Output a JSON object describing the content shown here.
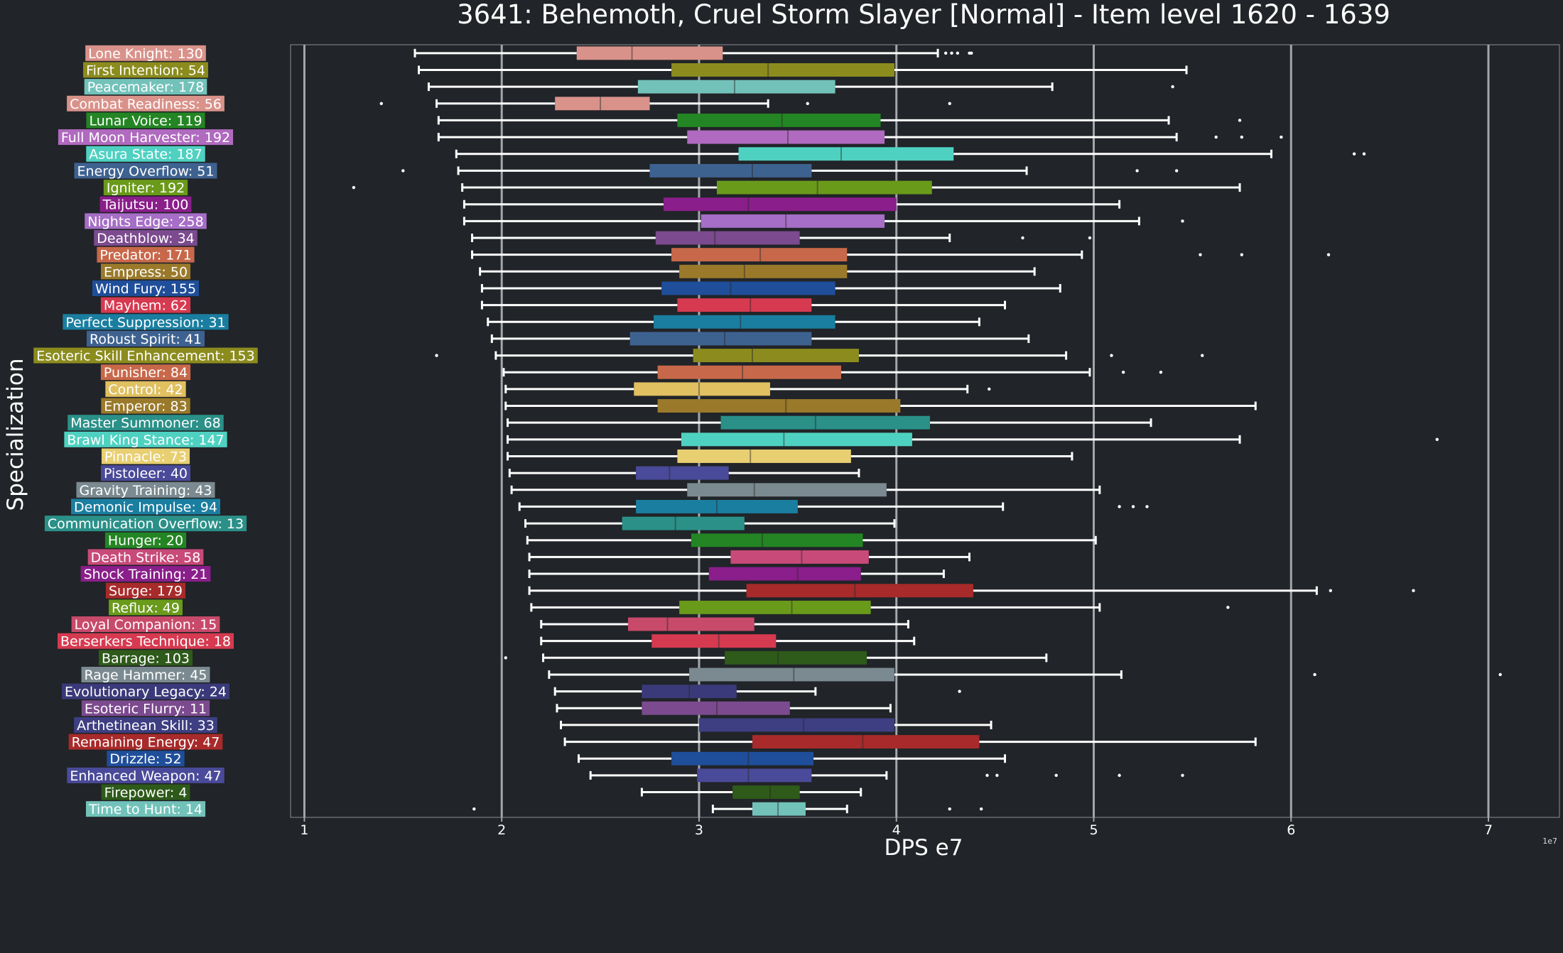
{
  "chart_data": {
    "type": "boxplot",
    "title": "3641: Behemoth, Cruel Storm Slayer [Normal] - Item level 1620 - 1639",
    "xlabel": "DPS e7",
    "ylabel": "Specialization",
    "scale_note": "1e7",
    "xlim": [
      0.93,
      7.36
    ],
    "xticks": [
      1,
      2,
      3,
      4,
      5,
      6,
      7
    ],
    "grid": "vertical",
    "background": "#212428",
    "series": [
      {
        "name": "Lone Knight",
        "count": 130,
        "color": "#D9928A",
        "min": 1.56,
        "q1": 2.38,
        "median": 2.66,
        "q3": 3.12,
        "max": 4.21,
        "outliers": [
          4.25,
          4.28,
          4.31,
          4.37,
          4.38
        ]
      },
      {
        "name": "First Intention",
        "count": 54,
        "color": "#8C8C1E",
        "min": 1.58,
        "q1": 2.86,
        "median": 3.35,
        "q3": 3.99,
        "max": 5.47,
        "outliers": []
      },
      {
        "name": "Peacemaker",
        "count": 178,
        "color": "#72C2BA",
        "min": 1.63,
        "q1": 2.69,
        "median": 3.18,
        "q3": 3.69,
        "max": 4.79,
        "outliers": [
          5.4
        ]
      },
      {
        "name": "Combat Readiness",
        "count": 56,
        "color": "#D9928A",
        "min": 1.67,
        "q1": 2.27,
        "median": 2.5,
        "q3": 2.75,
        "max": 3.35,
        "outliers": [
          1.39,
          3.55,
          4.27
        ]
      },
      {
        "name": "Lunar Voice",
        "count": 119,
        "color": "#238523",
        "min": 1.68,
        "q1": 2.89,
        "median": 3.42,
        "q3": 3.92,
        "max": 5.38,
        "outliers": [
          5.74
        ]
      },
      {
        "name": "Full Moon Harvester",
        "count": 192,
        "color": "#B06ABF",
        "min": 1.68,
        "q1": 2.94,
        "median": 3.45,
        "q3": 3.94,
        "max": 5.42,
        "outliers": [
          5.62,
          5.75,
          5.95
        ]
      },
      {
        "name": "Asura State",
        "count": 187,
        "color": "#4FD1C1",
        "min": 1.77,
        "q1": 3.2,
        "median": 3.72,
        "q3": 4.29,
        "max": 5.9,
        "outliers": [
          6.32,
          6.37
        ]
      },
      {
        "name": "Energy Overflow",
        "count": 51,
        "color": "#3E6290",
        "min": 1.78,
        "q1": 2.75,
        "median": 3.27,
        "q3": 3.57,
        "max": 4.66,
        "outliers": [
          1.5,
          5.22,
          5.42
        ]
      },
      {
        "name": "Igniter",
        "count": 192,
        "color": "#6A9A1A",
        "min": 1.8,
        "q1": 3.09,
        "median": 3.6,
        "q3": 4.18,
        "max": 5.74,
        "outliers": [
          1.25
        ]
      },
      {
        "name": "Taijutsu",
        "count": 100,
        "color": "#8A1E8A",
        "min": 1.81,
        "q1": 2.82,
        "median": 3.25,
        "q3": 4.0,
        "max": 5.13,
        "outliers": []
      },
      {
        "name": "Nights Edge",
        "count": 258,
        "color": "#A66EC6",
        "min": 1.81,
        "q1": 3.01,
        "median": 3.44,
        "q3": 3.94,
        "max": 5.23,
        "outliers": [
          5.45
        ]
      },
      {
        "name": "Deathblow",
        "count": 34,
        "color": "#7C4A8E",
        "min": 1.85,
        "q1": 2.78,
        "median": 3.08,
        "q3": 3.51,
        "max": 4.27,
        "outliers": [
          4.64,
          4.98
        ]
      },
      {
        "name": "Predator",
        "count": 171,
        "color": "#C8684A",
        "min": 1.85,
        "q1": 2.86,
        "median": 3.31,
        "q3": 3.75,
        "max": 4.94,
        "outliers": [
          5.54,
          5.75,
          6.19
        ]
      },
      {
        "name": "Empress",
        "count": 50,
        "color": "#9A7A2A",
        "min": 1.89,
        "q1": 2.9,
        "median": 3.23,
        "q3": 3.75,
        "max": 4.7,
        "outliers": []
      },
      {
        "name": "Wind Fury",
        "count": 155,
        "color": "#1F4E9A",
        "min": 1.9,
        "q1": 2.81,
        "median": 3.16,
        "q3": 3.69,
        "max": 4.83,
        "outliers": []
      },
      {
        "name": "Mayhem",
        "count": 62,
        "color": "#D63A50",
        "min": 1.9,
        "q1": 2.89,
        "median": 3.26,
        "q3": 3.57,
        "max": 4.55,
        "outliers": []
      },
      {
        "name": "Perfect Suppression",
        "count": 31,
        "color": "#1A7EA0",
        "min": 1.93,
        "q1": 2.77,
        "median": 3.21,
        "q3": 3.69,
        "max": 4.42,
        "outliers": []
      },
      {
        "name": "Robust Spirit",
        "count": 41,
        "color": "#3E6290",
        "min": 1.95,
        "q1": 2.65,
        "median": 3.13,
        "q3": 3.57,
        "max": 4.67,
        "outliers": []
      },
      {
        "name": "Esoteric Skill Enhancement",
        "count": 153,
        "color": "#8C8C1E",
        "min": 1.97,
        "q1": 2.97,
        "median": 3.27,
        "q3": 3.81,
        "max": 4.86,
        "outliers": [
          1.67,
          5.09,
          5.55
        ]
      },
      {
        "name": "Punisher",
        "count": 84,
        "color": "#C8684A",
        "min": 2.01,
        "q1": 2.79,
        "median": 3.22,
        "q3": 3.72,
        "max": 4.98,
        "outliers": [
          5.15,
          5.34
        ]
      },
      {
        "name": "Control",
        "count": 42,
        "color": "#E0C060",
        "min": 2.02,
        "q1": 2.67,
        "median": 3.0,
        "q3": 3.36,
        "max": 4.36,
        "outliers": [
          4.47
        ]
      },
      {
        "name": "Emperor",
        "count": 83,
        "color": "#9A7A2A",
        "min": 2.02,
        "q1": 2.79,
        "median": 3.44,
        "q3": 4.02,
        "max": 5.82,
        "outliers": []
      },
      {
        "name": "Master Summoner",
        "count": 68,
        "color": "#2A9088",
        "min": 2.03,
        "q1": 3.11,
        "median": 3.59,
        "q3": 4.17,
        "max": 5.29,
        "outliers": []
      },
      {
        "name": "Brawl King Stance",
        "count": 147,
        "color": "#4FD1C1",
        "min": 2.03,
        "q1": 2.91,
        "median": 3.43,
        "q3": 4.08,
        "max": 5.74,
        "outliers": [
          6.74
        ]
      },
      {
        "name": "Pinnacle",
        "count": 73,
        "color": "#E8CF72",
        "min": 2.03,
        "q1": 2.89,
        "median": 3.26,
        "q3": 3.77,
        "max": 4.89,
        "outliers": []
      },
      {
        "name": "Pistoleer",
        "count": 40,
        "color": "#4A4A9A",
        "min": 2.04,
        "q1": 2.68,
        "median": 2.85,
        "q3": 3.15,
        "max": 3.81,
        "outliers": []
      },
      {
        "name": "Gravity Training",
        "count": 43,
        "color": "#7A8A90",
        "min": 2.05,
        "q1": 2.94,
        "median": 3.28,
        "q3": 3.95,
        "max": 5.03,
        "outliers": []
      },
      {
        "name": "Demonic Impulse",
        "count": 94,
        "color": "#1A7EA0",
        "min": 2.09,
        "q1": 2.68,
        "median": 3.09,
        "q3": 3.5,
        "max": 4.54,
        "outliers": [
          5.13,
          5.2,
          5.27
        ]
      },
      {
        "name": "Communication Overflow",
        "count": 13,
        "color": "#2A9088",
        "min": 2.12,
        "q1": 2.61,
        "median": 2.88,
        "q3": 3.23,
        "max": 3.99,
        "outliers": []
      },
      {
        "name": "Hunger",
        "count": 20,
        "color": "#238523",
        "min": 2.13,
        "q1": 2.96,
        "median": 3.32,
        "q3": 3.83,
        "max": 5.01,
        "outliers": []
      },
      {
        "name": "Death Strike",
        "count": 58,
        "color": "#C84A78",
        "min": 2.14,
        "q1": 3.16,
        "median": 3.52,
        "q3": 3.86,
        "max": 4.37,
        "outliers": []
      },
      {
        "name": "Shock Training",
        "count": 21,
        "color": "#8A1E8A",
        "min": 2.14,
        "q1": 3.05,
        "median": 3.5,
        "q3": 3.82,
        "max": 4.24,
        "outliers": []
      },
      {
        "name": "Surge",
        "count": 179,
        "color": "#A82A2A",
        "min": 2.14,
        "q1": 3.24,
        "median": 3.79,
        "q3": 4.39,
        "max": 6.13,
        "outliers": [
          6.2,
          6.62
        ]
      },
      {
        "name": "Reflux",
        "count": 49,
        "color": "#6A9A1A",
        "min": 2.15,
        "q1": 2.9,
        "median": 3.47,
        "q3": 3.87,
        "max": 5.03,
        "outliers": [
          5.68
        ]
      },
      {
        "name": "Loyal Companion",
        "count": 15,
        "color": "#C84A6A",
        "min": 2.2,
        "q1": 2.64,
        "median": 2.84,
        "q3": 3.28,
        "max": 4.06,
        "outliers": []
      },
      {
        "name": "Berserkers Technique",
        "count": 18,
        "color": "#D63A50",
        "min": 2.2,
        "q1": 2.76,
        "median": 3.1,
        "q3": 3.39,
        "max": 4.09,
        "outliers": []
      },
      {
        "name": "Barrage",
        "count": 103,
        "color": "#2E5A1A",
        "min": 2.21,
        "q1": 3.13,
        "median": 3.4,
        "q3": 3.85,
        "max": 4.76,
        "outliers": [
          2.02
        ]
      },
      {
        "name": "Rage Hammer",
        "count": 45,
        "color": "#7A8A90",
        "min": 2.24,
        "q1": 2.95,
        "median": 3.48,
        "q3": 3.99,
        "max": 5.14,
        "outliers": [
          6.12,
          7.06
        ]
      },
      {
        "name": "Evolutionary Legacy",
        "count": 24,
        "color": "#3A3A7A",
        "min": 2.27,
        "q1": 2.71,
        "median": 2.95,
        "q3": 3.19,
        "max": 3.59,
        "outliers": [
          4.32
        ]
      },
      {
        "name": "Esoteric Flurry",
        "count": 11,
        "color": "#7C4A8E",
        "min": 2.28,
        "q1": 2.71,
        "median": 3.09,
        "q3": 3.46,
        "max": 3.97,
        "outliers": []
      },
      {
        "name": "Arthetinean Skill",
        "count": 33,
        "color": "#3E3E82",
        "min": 2.3,
        "q1": 3.0,
        "median": 3.53,
        "q3": 3.99,
        "max": 4.48,
        "outliers": []
      },
      {
        "name": "Remaining Energy",
        "count": 47,
        "color": "#A82A2A",
        "min": 2.32,
        "q1": 3.27,
        "median": 3.83,
        "q3": 4.42,
        "max": 5.82,
        "outliers": []
      },
      {
        "name": "Drizzle",
        "count": 52,
        "color": "#1F4E9A",
        "min": 2.39,
        "q1": 2.86,
        "median": 3.25,
        "q3": 3.58,
        "max": 4.55,
        "outliers": []
      },
      {
        "name": "Enhanced Weapon",
        "count": 47,
        "color": "#4A4A9A",
        "min": 2.45,
        "q1": 2.99,
        "median": 3.25,
        "q3": 3.57,
        "max": 3.95,
        "outliers": [
          4.46,
          4.51,
          4.81,
          5.13,
          5.45
        ]
      },
      {
        "name": "Firepower",
        "count": 4,
        "color": "#2E5A1A",
        "min": 2.71,
        "q1": 3.17,
        "median": 3.36,
        "q3": 3.51,
        "max": 3.82,
        "outliers": []
      },
      {
        "name": "Time to Hunt",
        "count": 14,
        "color": "#72C2BA",
        "min": 3.07,
        "q1": 3.27,
        "median": 3.4,
        "q3": 3.54,
        "max": 3.75,
        "outliers": [
          1.86,
          4.27,
          4.43
        ]
      }
    ]
  }
}
